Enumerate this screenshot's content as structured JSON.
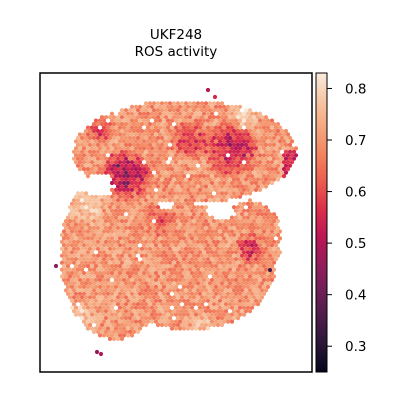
{
  "chart_data": {
    "type": "scatter",
    "plot_kind": "spatial hexagonal spot map",
    "title": "UKF248",
    "subtitle": "ROS activity",
    "xlabel": "",
    "ylabel": "",
    "axis_ticks": false,
    "grid": false,
    "legend": "none",
    "colorbar": {
      "position": "right",
      "colormap": "rocket",
      "range": [
        0.25,
        0.83
      ],
      "ticks": [
        0.3,
        0.4,
        0.5,
        0.6,
        0.7,
        0.8
      ],
      "tick_labels": [
        "0.3",
        "0.4",
        "0.5",
        "0.6",
        "0.7",
        "0.8"
      ]
    },
    "value_summary": {
      "typical_range": [
        0.55,
        0.78
      ],
      "low_spot_min": 0.28
    }
  },
  "colors": {
    "rocket": [
      "#03051a",
      "#2a1636",
      "#4c1d4b",
      "#701f57",
      "#961c5b",
      "#bd1655",
      "#dc2f4b",
      "#ec5c4e",
      "#f2845f",
      "#f5a67e",
      "#f6c7a5",
      "#faebdd"
    ]
  }
}
